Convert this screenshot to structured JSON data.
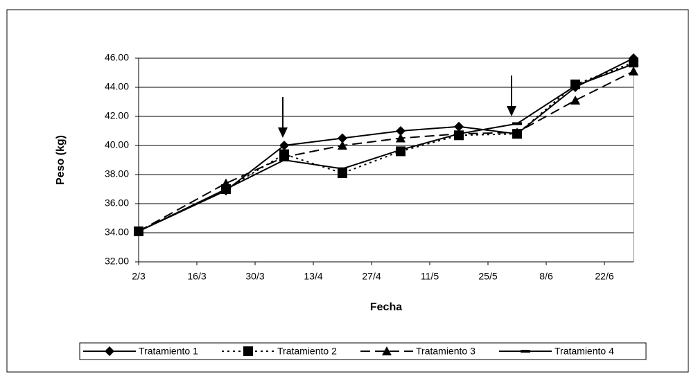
{
  "chart_data": {
    "type": "line",
    "xlabel": "Fecha",
    "ylabel": "Peso (kg)",
    "x": [
      "2/3",
      "23/3",
      "6/4",
      "20/4",
      "4/5",
      "18/5",
      "1/6",
      "15/6",
      "29/6"
    ],
    "xlim": [
      "2/3",
      "29/6"
    ],
    "xticks": [
      "2/3",
      "16/3",
      "30/3",
      "13/4",
      "27/4",
      "11/5",
      "25/5",
      "8/6",
      "22/6"
    ],
    "ylim": [
      32,
      46
    ],
    "yticks": [
      {
        "value": 32,
        "label": "32.00"
      },
      {
        "value": 34,
        "label": "34.00"
      },
      {
        "value": 36,
        "label": "36.00"
      },
      {
        "value": 38,
        "label": "38.00"
      },
      {
        "value": 40,
        "label": "40.00"
      },
      {
        "value": 42,
        "label": "42.00"
      },
      {
        "value": 44,
        "label": "44.00"
      },
      {
        "value": 46,
        "label": "46.00"
      }
    ],
    "grid": true,
    "legend": "bottom",
    "series": [
      {
        "name": "Tratamiento 1",
        "color": "#000000",
        "marker": "diamond",
        "dash": "solid",
        "values": [
          34.1,
          36.9,
          40.0,
          40.5,
          41.0,
          41.3,
          40.8,
          44.0,
          46.0
        ]
      },
      {
        "name": "Tratamiento 2",
        "color": "#000000",
        "marker": "square",
        "dash": "dotted",
        "values": [
          34.1,
          37.0,
          39.4,
          38.1,
          39.6,
          40.7,
          40.8,
          44.2,
          45.7
        ]
      },
      {
        "name": "Tratamiento 3",
        "color": "#000000",
        "marker": "triangle",
        "dash": "dashed",
        "values": [
          34.1,
          37.4,
          39.2,
          40.0,
          40.5,
          40.8,
          40.9,
          43.1,
          45.1
        ]
      },
      {
        "name": "Tratamiento 4",
        "color": "#000000",
        "marker": "dash",
        "dash": "solid",
        "values": [
          34.1,
          37.0,
          39.0,
          38.4,
          39.7,
          40.8,
          41.5,
          44.1,
          45.6
        ]
      }
    ]
  }
}
